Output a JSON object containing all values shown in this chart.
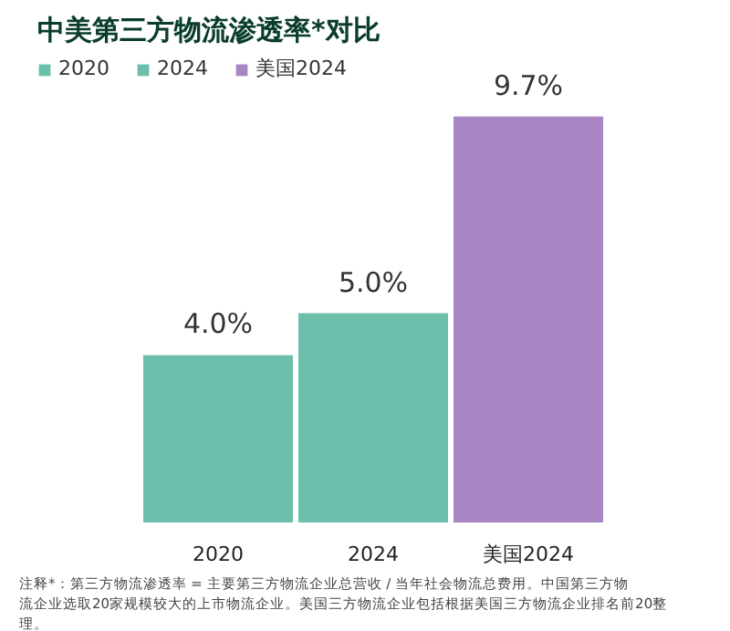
{
  "chart_data": {
    "type": "bar",
    "title": "中美第三方物流渗透率*对比",
    "categories": [
      "2020",
      "2024",
      "美国2024"
    ],
    "stacked": true,
    "series": [
      {
        "name": "2020",
        "color": "#6cbfab",
        "values": [
          4.0,
          null,
          null
        ],
        "value_labels": [
          "4.0%",
          null,
          null
        ]
      },
      {
        "name": "2024",
        "color": "#6cbfab",
        "values": [
          null,
          5.0,
          null
        ],
        "value_labels": [
          null,
          "5.0%",
          null
        ]
      },
      {
        "name": "美国2024",
        "color": "#a886c4",
        "values": [
          null,
          null,
          9.7
        ],
        "value_labels": [
          null,
          null,
          "9.7%"
        ]
      }
    ],
    "legend": "top left",
    "annotations": [
      "注释*：第三方物流渗透率 = 主要第三方物流企业总营收 / 当年社会物流总费用。中国第三方物流企业选取20家规模较大的上市物流企业。美国三方物流企业包括根据美国三方物流企业排名前20整理。"
    ]
  }
}
